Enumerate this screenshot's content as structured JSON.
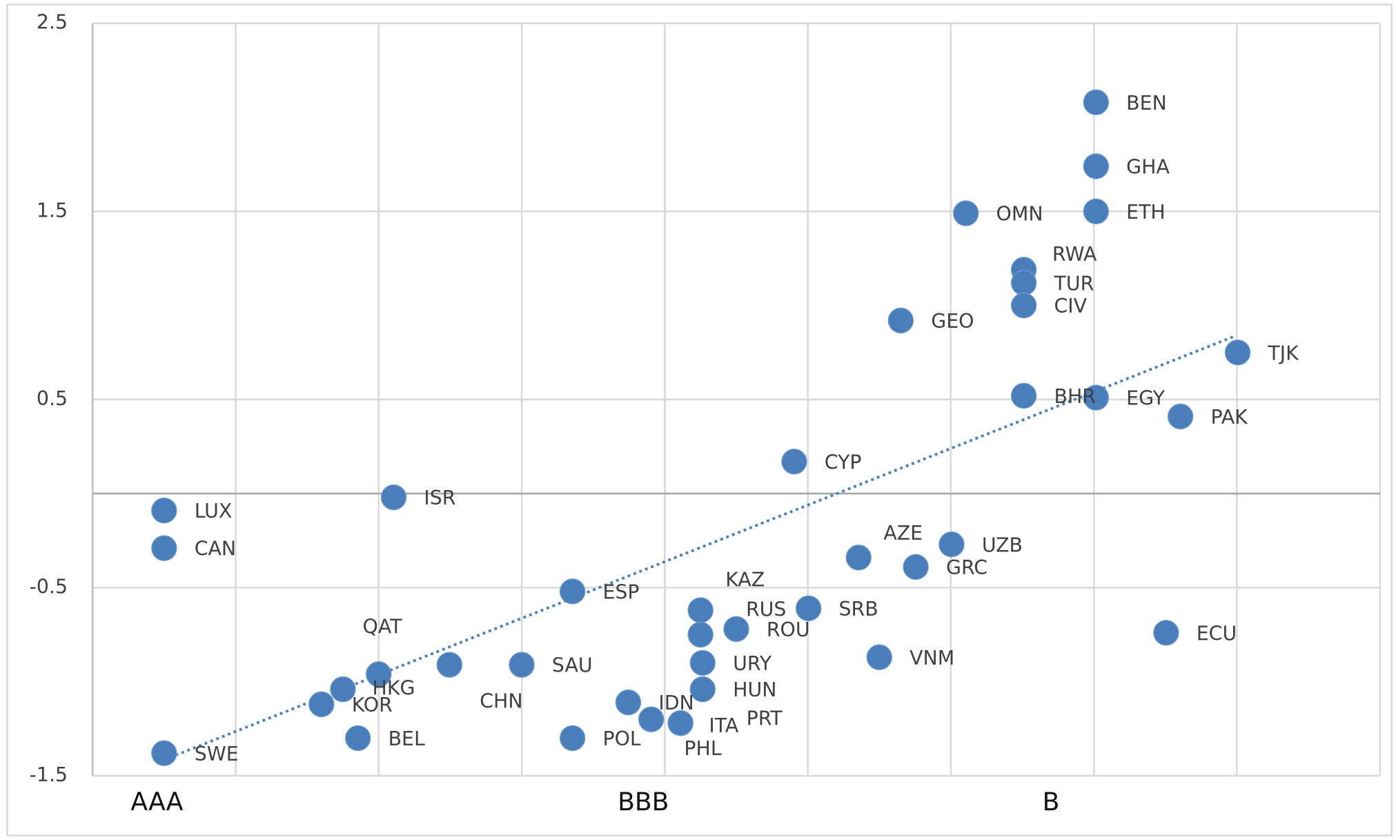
{
  "chart_data": {
    "type": "scatter",
    "color": "#4a7ebb",
    "xlim": [
      0,
      18
    ],
    "ylim": [
      -1.5,
      2.5
    ],
    "yticks": [
      -1.5,
      -0.5,
      0.5,
      1.5,
      2.5
    ],
    "xticks": [
      {
        "value": 0.9,
        "label": "AAA"
      },
      {
        "value": 7.7,
        "label": "BBB"
      },
      {
        "value": 13.4,
        "label": "B"
      }
    ],
    "x_gridlines": [
      0,
      2,
      4,
      6,
      8,
      10,
      12,
      14,
      16,
      18
    ],
    "grid": true,
    "point_labels": [
      "SWE",
      "LUX",
      "CAN",
      "ISR",
      "KOR",
      "HKG",
      "QAT",
      "BEL",
      "CHN",
      "SAU",
      "ESP",
      "POL",
      "IDN",
      "PHL",
      "ITA",
      "PRT",
      "KAZ",
      "RUS",
      "ROU",
      "URY",
      "HUN",
      "CYP",
      "SRB",
      "AZE",
      "GRC",
      "UZB",
      "VNM",
      "GEO",
      "OMN",
      "RWA",
      "TUR",
      "CIV",
      "BHR",
      "BEN",
      "GHA",
      "ETH",
      "EGY",
      "PAK",
      "ECU",
      "TJK"
    ],
    "x": [
      1.0,
      1.0,
      1.0,
      4.21,
      3.2,
      3.5,
      4.0,
      3.71,
      4.99,
      6.0,
      6.71,
      6.71,
      7.49,
      7.81,
      8.22,
      8.22,
      8.5,
      8.5,
      9.0,
      8.53,
      8.53,
      9.81,
      10.01,
      10.71,
      11.51,
      12.01,
      11.0,
      11.3,
      12.21,
      13.02,
      13.02,
      13.02,
      13.02,
      14.03,
      14.03,
      14.03,
      14.03,
      15.21,
      15.01,
      16.01
    ],
    "values": [
      -1.38,
      -0.09,
      -0.29,
      -0.02,
      -1.12,
      -1.04,
      -0.96,
      -1.3,
      -0.91,
      -0.91,
      -0.52,
      -1.3,
      -1.11,
      -1.2,
      -1.22,
      -1.22,
      -0.62,
      -0.75,
      -0.72,
      -0.9,
      -1.04,
      0.17,
      -0.61,
      -0.34,
      -0.39,
      -0.27,
      -0.87,
      0.92,
      1.49,
      1.19,
      1.12,
      1.0,
      0.52,
      2.08,
      1.74,
      1.5,
      0.51,
      0.41,
      -0.74,
      0.75
    ],
    "trendline": {
      "x": [
        1.0,
        15.95
      ],
      "y": [
        -1.415,
        0.834
      ],
      "color": "#4a7ebb"
    }
  }
}
